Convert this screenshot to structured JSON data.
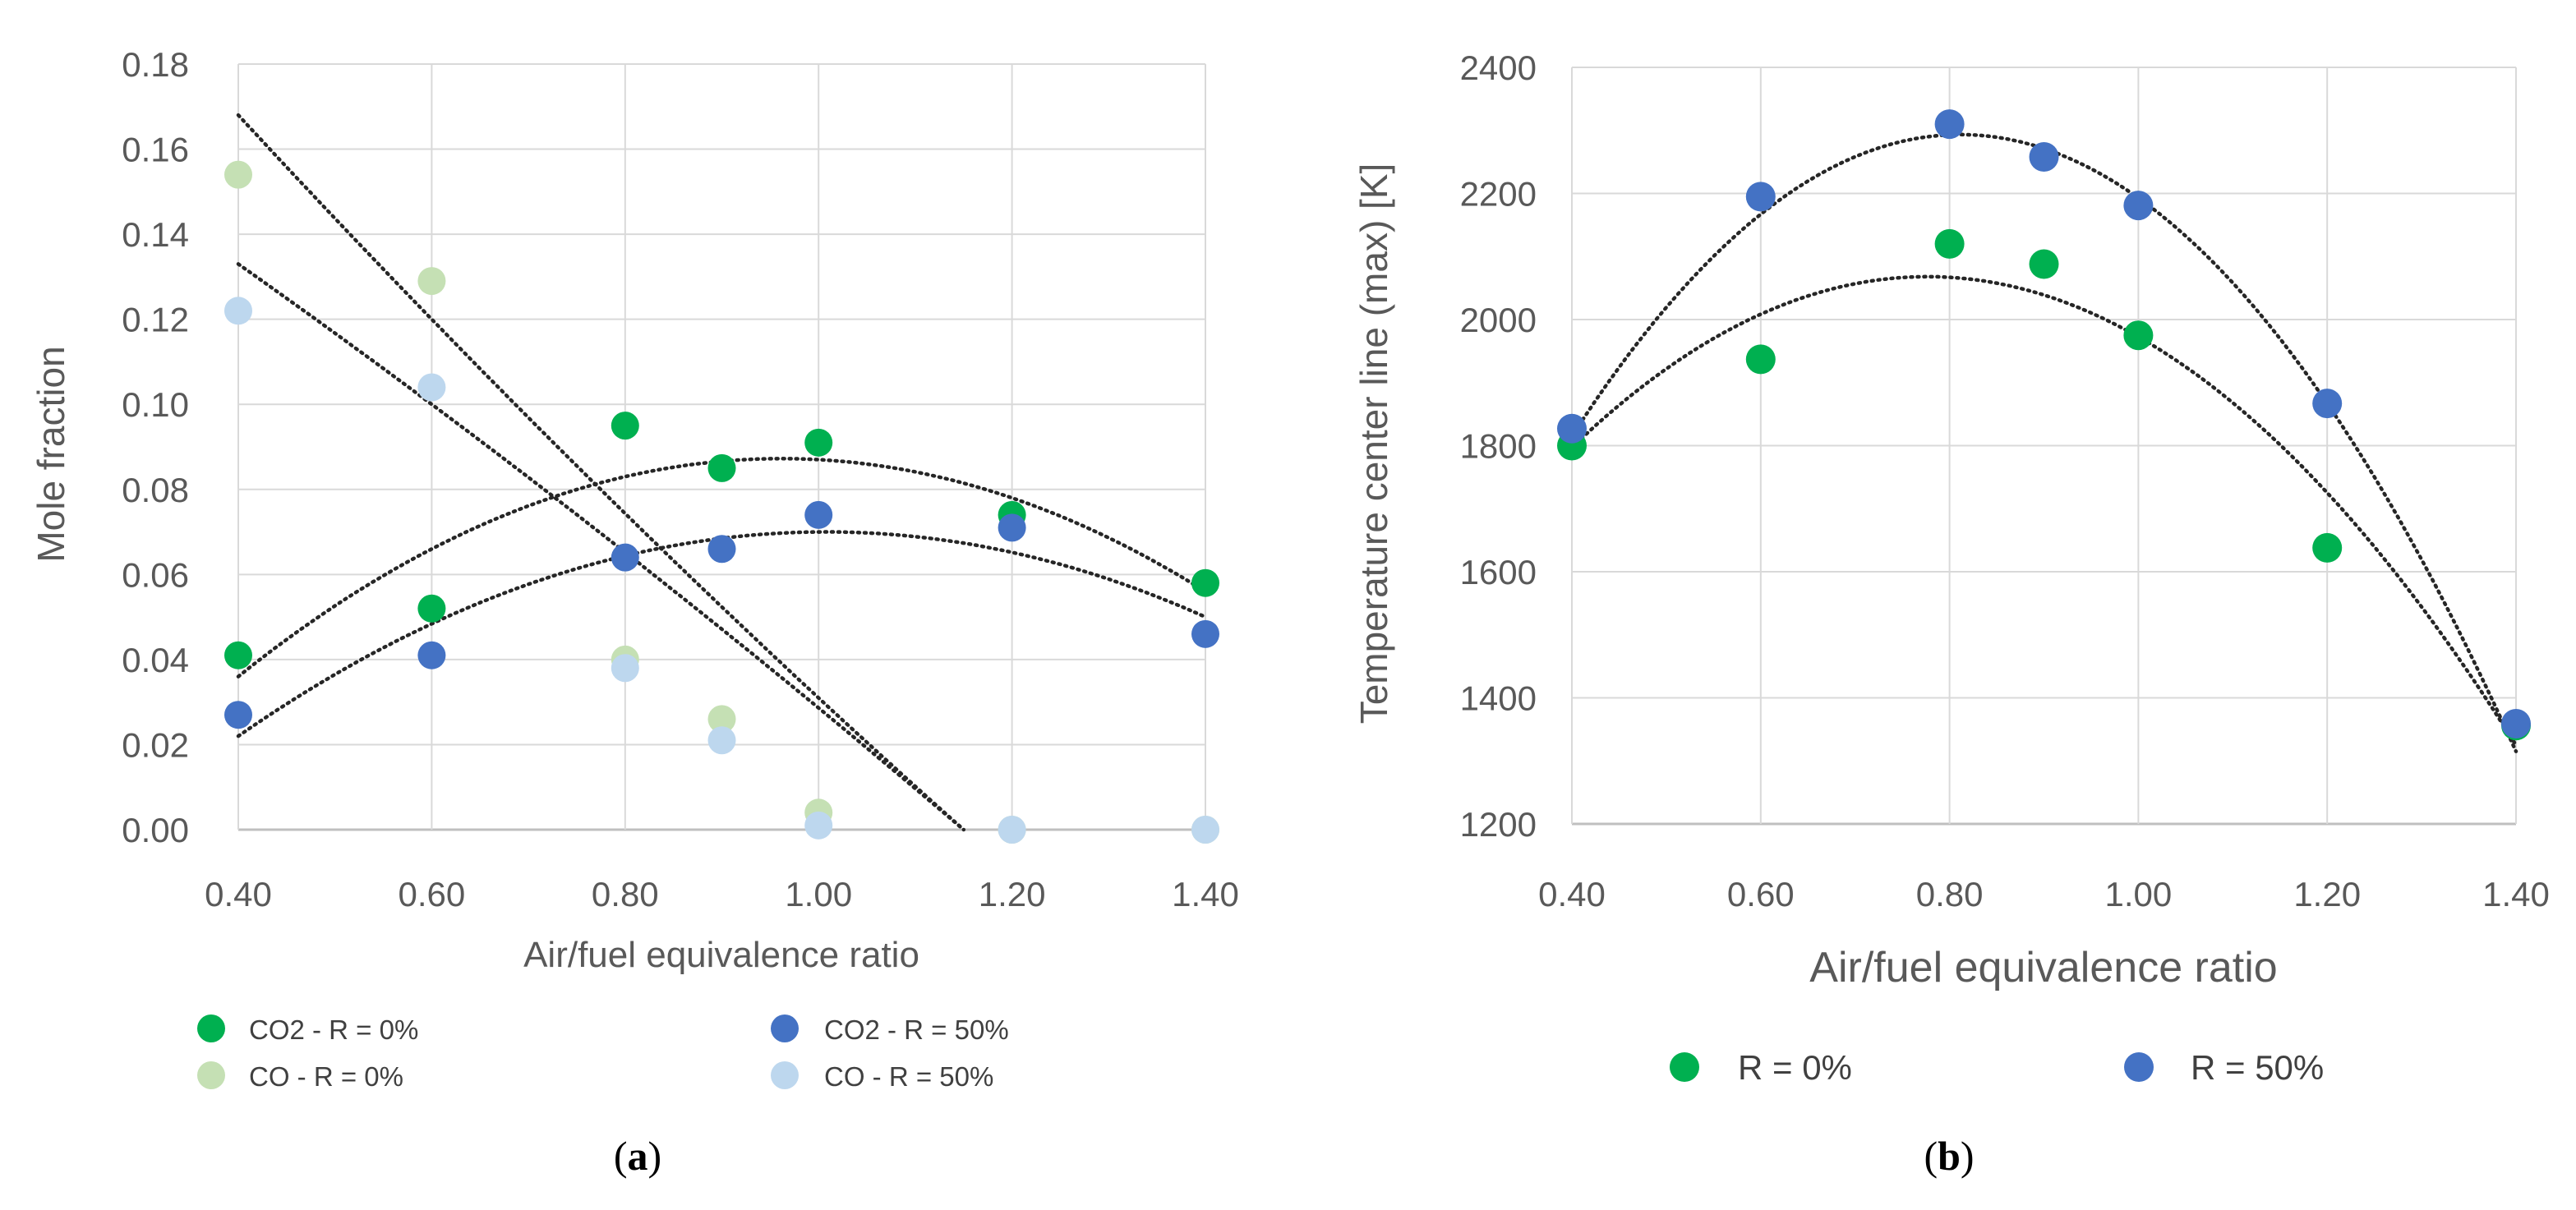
{
  "chart_data": [
    {
      "type": "scatter",
      "panel": "a",
      "caption_open": "(",
      "caption_letter": "a",
      "caption_close": ")",
      "xlabel": "Air/fuel equivalence ratio",
      "ylabel": "Mole fraction",
      "xlim": [
        0.4,
        1.4
      ],
      "ylim": [
        0.0,
        0.18
      ],
      "x_ticks": [
        "0.40",
        "0.60",
        "0.80",
        "1.00",
        "1.20",
        "1.40"
      ],
      "y_ticks": [
        "0.00",
        "0.02",
        "0.04",
        "0.06",
        "0.08",
        "0.10",
        "0.12",
        "0.14",
        "0.16",
        "0.18"
      ],
      "grid": true,
      "series": [
        {
          "name": "CO2 - R = 0%",
          "color": "#00b050",
          "x": [
            0.4,
            0.6,
            0.8,
            0.9,
            1.0,
            1.2,
            1.4
          ],
          "y": [
            0.041,
            0.052,
            0.095,
            0.085,
            0.091,
            0.074,
            0.058
          ]
        },
        {
          "name": "CO2 - R = 50%",
          "color": "#4472c4",
          "x": [
            0.4,
            0.6,
            0.8,
            0.9,
            1.0,
            1.2,
            1.4
          ],
          "y": [
            0.027,
            0.041,
            0.064,
            0.066,
            0.074,
            0.071,
            0.046
          ]
        },
        {
          "name": "CO - R = 0%",
          "color": "#c5e0b4",
          "x": [
            0.4,
            0.6,
            0.8,
            0.9,
            1.0,
            1.2,
            1.4
          ],
          "y": [
            0.154,
            0.129,
            0.04,
            0.026,
            0.004,
            0.0,
            0.0
          ]
        },
        {
          "name": "CO - R = 50%",
          "color": "#bdd7ee",
          "x": [
            0.4,
            0.6,
            0.8,
            0.9,
            1.0,
            1.2,
            1.4
          ],
          "y": [
            0.122,
            0.104,
            0.038,
            0.021,
            0.001,
            0.0,
            0.0
          ]
        }
      ],
      "trendlines": [
        {
          "name": "CO2 - R = 0% trend",
          "x": [
            0.4,
            1.0,
            1.4
          ],
          "y": [
            0.036,
            0.087,
            0.056
          ]
        },
        {
          "name": "CO2 - R = 50% trend",
          "x": [
            0.4,
            1.0,
            1.4
          ],
          "y": [
            0.022,
            0.07,
            0.05
          ]
        },
        {
          "name": "CO - R = 0% trend",
          "x": [
            0.4,
            0.6,
            1.15
          ],
          "y": [
            0.168,
            0.12,
            0.0
          ]
        },
        {
          "name": "CO - R = 50% trend",
          "x": [
            0.4,
            0.6,
            1.15
          ],
          "y": [
            0.133,
            0.1,
            0.0
          ]
        }
      ],
      "legend_position": "bottom",
      "legend": [
        "CO2 - R = 0%",
        "CO2 - R = 50%",
        "CO - R = 0%",
        "CO - R = 50%"
      ]
    },
    {
      "type": "scatter",
      "panel": "b",
      "caption_open": "(",
      "caption_letter": "b",
      "caption_close": ")",
      "xlabel": "Air/fuel equivalence ratio",
      "ylabel": "Temperature center line (max) [K]",
      "xlim": [
        0.4,
        1.4
      ],
      "ylim": [
        1200,
        2400
      ],
      "x_ticks": [
        "0.40",
        "0.60",
        "0.80",
        "1.00",
        "1.20",
        "1.40"
      ],
      "y_ticks": [
        "1200",
        "1400",
        "1600",
        "1800",
        "2000",
        "2200",
        "2400"
      ],
      "grid": true,
      "series": [
        {
          "name": "R = 0%",
          "color": "#00b050",
          "x": [
            0.4,
            0.6,
            0.8,
            0.9,
            1.0,
            1.2,
            1.4
          ],
          "y": [
            1800,
            1937,
            2120,
            2088,
            1975,
            1638,
            1356
          ]
        },
        {
          "name": "R = 50%",
          "color": "#4472c4",
          "x": [
            0.4,
            0.6,
            0.8,
            0.9,
            1.0,
            1.2,
            1.4
          ],
          "y": [
            1827,
            2195,
            2310,
            2258,
            2181,
            1867,
            1359
          ]
        }
      ],
      "trendlines": [
        {
          "name": "R = 0% trend",
          "x": [
            0.4,
            0.8,
            1.4
          ],
          "y": [
            1797,
            2067,
            1325
          ]
        },
        {
          "name": "R = 50% trend",
          "x": [
            0.4,
            0.8,
            1.4
          ],
          "y": [
            1815,
            2293,
            1315
          ]
        }
      ],
      "legend_position": "bottom",
      "legend": [
        "R = 0%",
        "R = 50%"
      ]
    }
  ]
}
